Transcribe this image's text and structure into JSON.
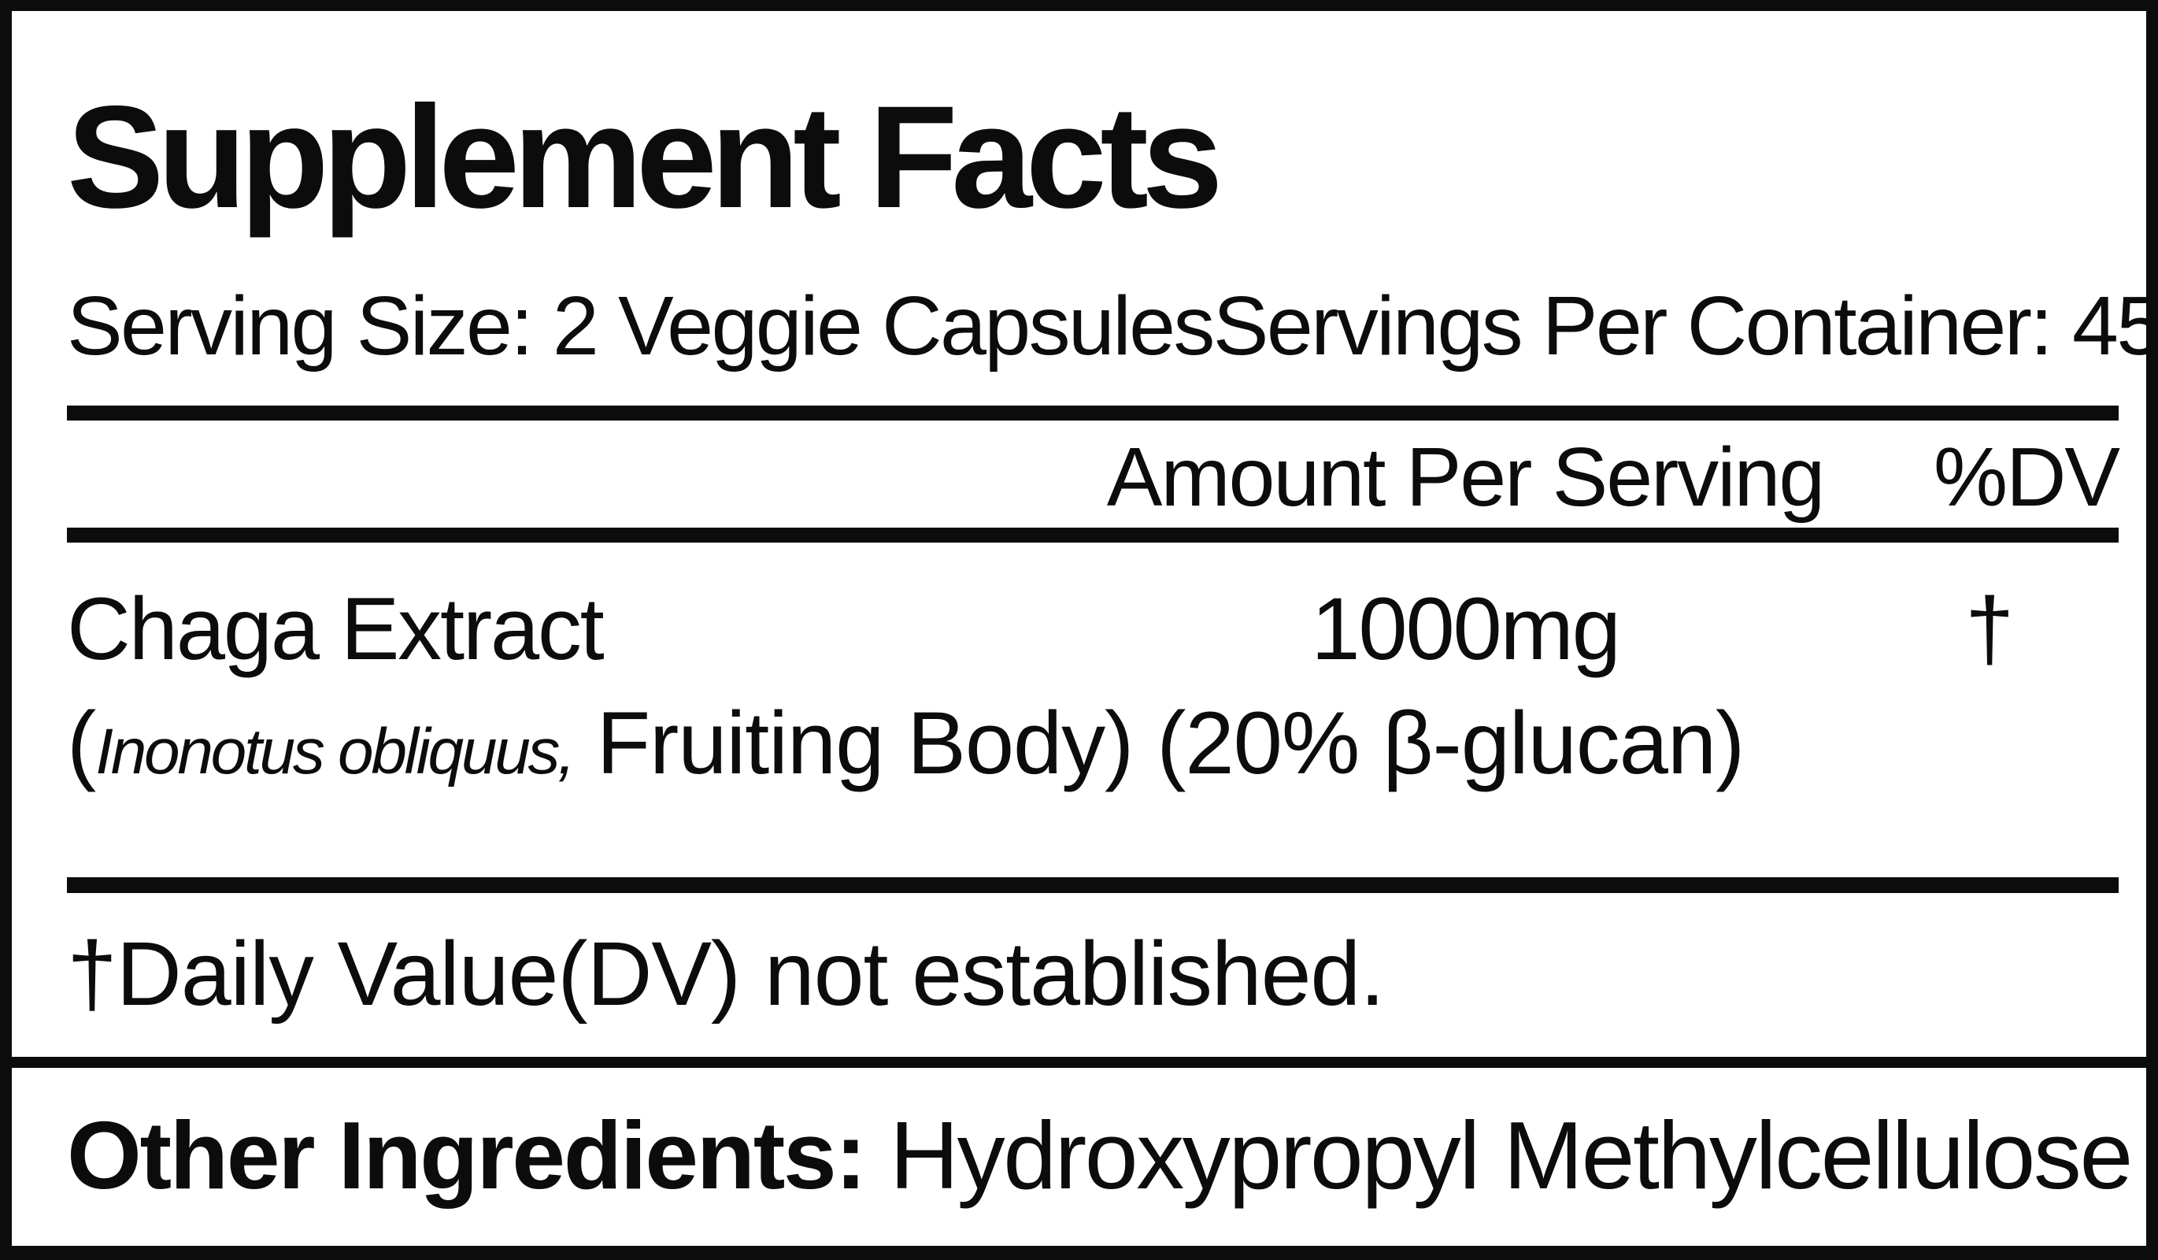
{
  "label": {
    "title": "Supplement Facts",
    "serving_size": "Serving Size: 2 Veggie Capsules",
    "servings_per_container": "Servings Per Container: 45",
    "columns": {
      "amount_header": "Amount Per Serving",
      "dv_header": "%DV"
    },
    "ingredients": [
      {
        "name": "Chaga Extract",
        "detail_open": "(",
        "detail_latin": "Inonotus obliquus,",
        "detail_rest": " Fruiting Body) (20% β-glucan)",
        "amount": "1000mg",
        "dv": "†"
      }
    ],
    "footnote": "†Daily Value(DV) not established.",
    "other_ingredients": {
      "label": "Other Ingredients:",
      "value": " Hydroxypropyl Methylcellulose"
    },
    "colors": {
      "ink": "#0c0c0c",
      "background": "#ffffff"
    }
  }
}
